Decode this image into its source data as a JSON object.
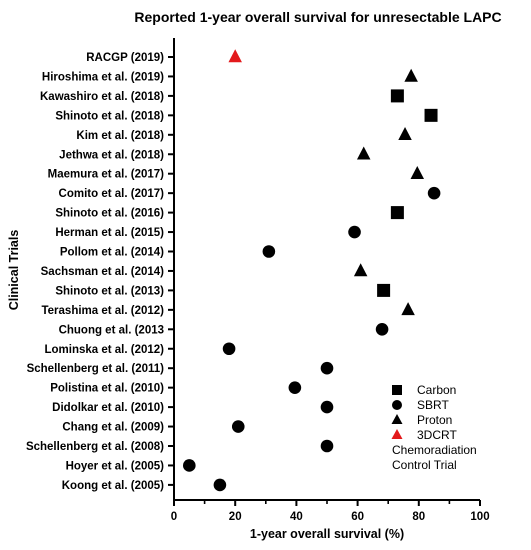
{
  "chart_data": {
    "type": "scatter",
    "title": "Reported 1-year overall survival for unresectable LAPC",
    "xlabel": "1-year overall survival (%)",
    "ylabel": "Clinical Trials",
    "xlim": [
      0,
      100
    ],
    "xticks": [
      "0",
      "20",
      "40",
      "60",
      "80",
      "100"
    ],
    "grid": false,
    "legend_position": "bottom-right",
    "trials": [
      {
        "label": "RACGP (2019)",
        "value": 20,
        "modality": "3DCRT"
      },
      {
        "label": "Hiroshima et al. (2019)",
        "value": 77.5,
        "modality": "Proton"
      },
      {
        "label": "Kawashiro et al. (2018)",
        "value": 73,
        "modality": "Carbon"
      },
      {
        "label": "Shinoto et al. (2018)",
        "value": 84,
        "modality": "Carbon"
      },
      {
        "label": "Kim et al. (2018)",
        "value": 75.5,
        "modality": "Proton"
      },
      {
        "label": "Jethwa et al. (2018)",
        "value": 62,
        "modality": "Proton"
      },
      {
        "label": "Maemura et al. (2017)",
        "value": 79.5,
        "modality": "Proton"
      },
      {
        "label": "Comito et al. (2017)",
        "value": 85,
        "modality": "SBRT"
      },
      {
        "label": "Shinoto et al. (2016)",
        "value": 73,
        "modality": "Carbon"
      },
      {
        "label": "Herman et al. (2015)",
        "value": 59,
        "modality": "SBRT"
      },
      {
        "label": "Pollom et al. (2014)",
        "value": 31,
        "modality": "SBRT"
      },
      {
        "label": "Sachsman et al. (2014)",
        "value": 61,
        "modality": "Proton"
      },
      {
        "label": "Shinoto et al. (2013)",
        "value": 68.5,
        "modality": "Carbon"
      },
      {
        "label": "Terashima et al. (2012)",
        "value": 76.5,
        "modality": "Proton"
      },
      {
        "label": "Chuong et al. (2013",
        "value": 68,
        "modality": "SBRT"
      },
      {
        "label": "Lominska et al. (2012)",
        "value": 18,
        "modality": "SBRT"
      },
      {
        "label": "Schellenberg et al. (2011)",
        "value": 50,
        "modality": "SBRT"
      },
      {
        "label": "Polistina et al. (2010)",
        "value": 39.5,
        "modality": "SBRT"
      },
      {
        "label": "Didolkar et al. (2010)",
        "value": 50,
        "modality": "SBRT"
      },
      {
        "label": "Chang et al. (2009)",
        "value": 21,
        "modality": "SBRT"
      },
      {
        "label": "Schellenberg et al. (2008)",
        "value": 50,
        "modality": "SBRT"
      },
      {
        "label": "Hoyer et al. (2005)",
        "value": 5,
        "modality": "SBRT"
      },
      {
        "label": "Koong et al. (2005)",
        "value": 15,
        "modality": "SBRT"
      }
    ],
    "legend": [
      {
        "modality": "Carbon",
        "label": "Carbon",
        "shape": "square",
        "color": "#000000"
      },
      {
        "modality": "SBRT",
        "label": "SBRT",
        "shape": "circle",
        "color": "#000000"
      },
      {
        "modality": "Proton",
        "label": "Proton",
        "shape": "triangle",
        "color": "#000000"
      },
      {
        "modality": "3DCRT",
        "label": "3DCRT",
        "shape": "triangle",
        "color": "#e31a1c"
      }
    ],
    "legend_note": [
      "Chemoradiation",
      "Control Trial"
    ]
  }
}
